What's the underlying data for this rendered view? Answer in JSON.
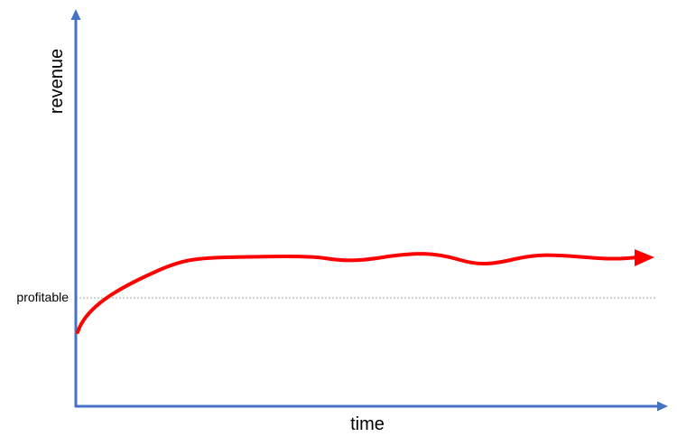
{
  "axes": {
    "y_label": "revenue",
    "x_label": "time"
  },
  "threshold": {
    "label": "profitable"
  }
}
